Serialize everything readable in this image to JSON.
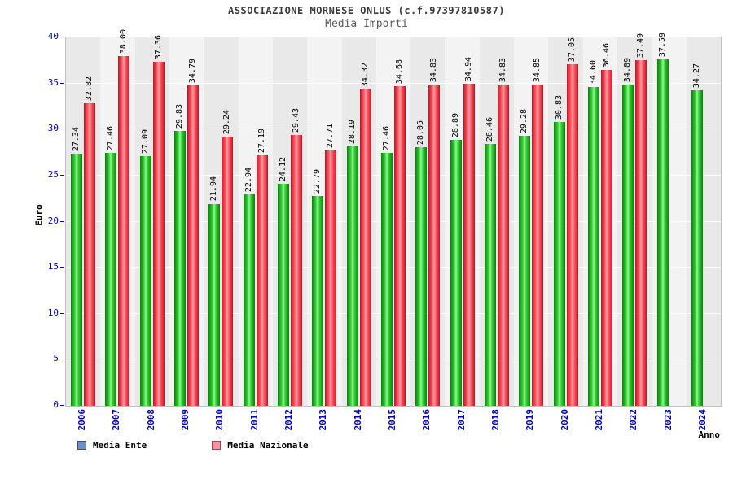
{
  "chart_data": {
    "type": "bar",
    "title": "ASSOCIAZIONE MORNESE ONLUS (c.f.97397810587)",
    "subtitle": "Media Importi",
    "xlabel": "Anno",
    "ylabel": "Euro",
    "ylim": [
      0,
      40
    ],
    "ytick_step": 5,
    "grid": true,
    "legend_position": "bottom",
    "value_label_format": "two-decimals",
    "categories": [
      "2006",
      "2007",
      "2008",
      "2009",
      "2010",
      "2011",
      "2012",
      "2013",
      "2014",
      "2015",
      "2016",
      "2017",
      "2018",
      "2019",
      "2020",
      "2021",
      "2022",
      "2023",
      "2024"
    ],
    "series": [
      {
        "name": "Media Ente",
        "bar_color": "#00b400",
        "legend_color": "#6e8fc9",
        "values": [
          27.34,
          27.46,
          27.09,
          29.83,
          21.94,
          22.94,
          24.12,
          22.79,
          28.19,
          27.46,
          28.05,
          28.89,
          28.46,
          29.28,
          30.83,
          34.6,
          34.89,
          37.59,
          34.27
        ]
      },
      {
        "name": "Media Nazionale",
        "bar_color": "#ff3b4e",
        "legend_color": "#ff8e9e",
        "values": [
          32.82,
          38.0,
          37.36,
          34.79,
          29.24,
          27.19,
          29.43,
          27.71,
          34.32,
          34.68,
          34.83,
          34.94,
          34.83,
          34.85,
          37.05,
          36.46,
          37.49,
          null,
          null
        ]
      }
    ],
    "stripe_colors": [
      "#e9e9e9",
      "#f3f3f3"
    ]
  }
}
